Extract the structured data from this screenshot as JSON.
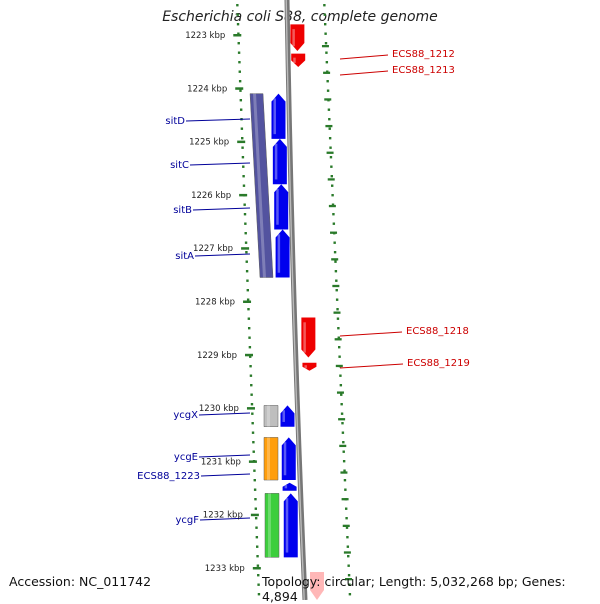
{
  "title": "Escherichia coli S88, complete genome",
  "footer": {
    "accession": "Accession: NC_011742",
    "topology": "Topology: circular; Length: 5,032,268 bp; Genes: 4,894"
  },
  "colors": {
    "forward_gene": "#0000ee",
    "reverse_gene": "#ee0000",
    "forward_label": "#000099",
    "reverse_label": "#cc0000",
    "tick": "#2a7a2a",
    "backbone": "#888888",
    "operon_sit": "#4a4a9a",
    "ycgX_block": "#bbbbbb",
    "ycgE_block": "#ff9900",
    "ycgF_block": "#33cc33"
  },
  "scale": {
    "start_kbp": 1222.8,
    "end_kbp": 1233.2,
    "tick_labels": [
      {
        "kbp": 1223,
        "label": "1223 kbp"
      },
      {
        "kbp": 1224,
        "label": "1224 kbp"
      },
      {
        "kbp": 1225,
        "label": "1225 kbp"
      },
      {
        "kbp": 1226,
        "label": "1226 kbp"
      },
      {
        "kbp": 1227,
        "label": "1227 kbp"
      },
      {
        "kbp": 1228,
        "label": "1228 kbp"
      },
      {
        "kbp": 1229,
        "label": "1229 kbp"
      },
      {
        "kbp": 1230,
        "label": "1230 kbp"
      },
      {
        "kbp": 1231,
        "label": "1231 kbp"
      },
      {
        "kbp": 1232,
        "label": "1232 kbp"
      },
      {
        "kbp": 1233,
        "label": "1233 kbp"
      }
    ]
  },
  "genes": [
    {
      "name": "ECS88_1212",
      "strand": "reverse",
      "start_kbp": 1222.8,
      "end_kbp": 1223.3
    },
    {
      "name": "ECS88_1213",
      "strand": "reverse",
      "start_kbp": 1223.35,
      "end_kbp": 1223.6
    },
    {
      "name": "sitD",
      "strand": "forward",
      "start_kbp": 1224.1,
      "end_kbp": 1224.95
    },
    {
      "name": "sitC",
      "strand": "forward",
      "start_kbp": 1224.95,
      "end_kbp": 1225.8
    },
    {
      "name": "sitB",
      "strand": "forward",
      "start_kbp": 1225.8,
      "end_kbp": 1226.65
    },
    {
      "name": "sitA",
      "strand": "forward",
      "start_kbp": 1226.65,
      "end_kbp": 1227.55
    },
    {
      "name": "ECS88_1218",
      "strand": "reverse",
      "start_kbp": 1228.3,
      "end_kbp": 1229.05
    },
    {
      "name": "ECS88_1219",
      "strand": "reverse",
      "start_kbp": 1229.15,
      "end_kbp": 1229.3
    },
    {
      "name": "ycgX",
      "strand": "forward",
      "start_kbp": 1229.95,
      "end_kbp": 1230.35
    },
    {
      "name": "ycgE",
      "strand": "forward",
      "start_kbp": 1230.55,
      "end_kbp": 1231.35
    },
    {
      "name": "ECS88_1223",
      "strand": "forward",
      "start_kbp": 1231.4,
      "end_kbp": 1231.55
    },
    {
      "name": "ycgF",
      "strand": "forward",
      "start_kbp": 1231.6,
      "end_kbp": 1232.8
    }
  ]
}
